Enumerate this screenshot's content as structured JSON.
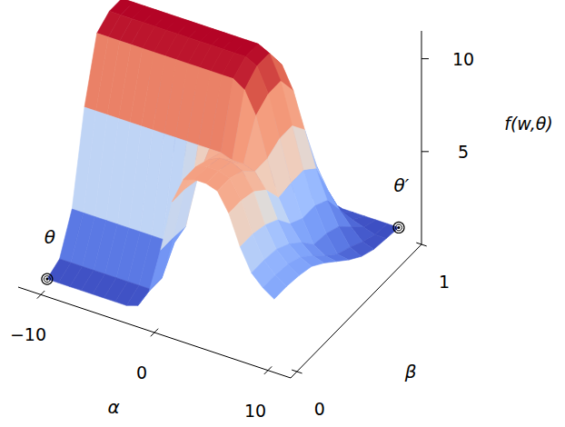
{
  "chart_data": {
    "type": "surface",
    "x_label": "α",
    "y_label": "β",
    "z_label": "f(w,θ)",
    "x": [
      -10,
      -9,
      -8,
      -7,
      -6,
      -5,
      -4,
      -3,
      -2,
      -1,
      0,
      1,
      2,
      3,
      4,
      5,
      6,
      7,
      8,
      9,
      10
    ],
    "y": [
      0,
      0.1,
      0.2,
      0.3,
      0.4,
      0.5,
      0.6,
      0.7,
      0.8,
      0.9,
      1
    ],
    "z": [
      [
        0.5,
        0.5,
        0.5,
        0.5,
        0.5,
        0.5,
        0.5,
        0.5,
        0.7,
        1.7,
        4.1,
        6.9,
        8.3,
        8.5,
        8.5,
        8.3,
        7.3,
        5.7,
        4.5,
        3.9,
        3.5
      ],
      [
        0.9,
        0.9,
        0.9,
        0.9,
        0.9,
        0.9,
        0.9,
        0.9,
        0.9,
        1.7,
        4.1,
        6.9,
        8.3,
        8.5,
        8.5,
        8.3,
        7.3,
        5.7,
        4.5,
        3.9,
        3.5
      ],
      [
        2.9,
        2.9,
        2.9,
        2.9,
        2.9,
        2.9,
        2.9,
        2.9,
        2.9,
        2.9,
        4.0,
        6.7,
        8.0,
        8.3,
        8.3,
        8.0,
        7.1,
        5.5,
        4.4,
        3.8,
        3.4
      ],
      [
        7.7,
        7.7,
        7.7,
        7.7,
        7.7,
        7.7,
        7.7,
        7.7,
        7.7,
        7.7,
        7.7,
        7.7,
        7.7,
        7.5,
        7.5,
        7.3,
        6.5,
        5.1,
        4.0,
        3.5,
        3.2
      ],
      [
        11.0,
        11.0,
        11.0,
        11.0,
        11.0,
        11.0,
        11.0,
        11.0,
        11.0,
        11.0,
        11.0,
        11.0,
        11.0,
        10.6,
        9.4,
        7.3,
        5.4,
        4.2,
        3.4,
        2.9,
        2.7
      ],
      [
        11.5,
        11.5,
        11.5,
        11.5,
        11.5,
        11.5,
        11.5,
        11.5,
        11.5,
        11.5,
        11.5,
        11.5,
        11.5,
        11.2,
        9.9,
        7.7,
        5.5,
        3.8,
        2.6,
        2.2,
        2.1
      ],
      [
        11.5,
        11.5,
        11.5,
        11.5,
        11.5,
        11.5,
        11.5,
        11.5,
        11.5,
        11.5,
        11.5,
        11.5,
        11.5,
        11.2,
        9.9,
        7.7,
        5.5,
        3.8,
        2.5,
        1.6,
        1.5
      ],
      [
        10.2,
        10.2,
        10.2,
        10.2,
        10.2,
        10.2,
        10.2,
        10.2,
        10.2,
        10.2,
        10.2,
        10.2,
        10.2,
        9.9,
        8.7,
        6.8,
        4.9,
        3.4,
        2.2,
        1.3,
        1.0
      ],
      [
        6.0,
        6.0,
        6.0,
        6.0,
        6.0,
        6.0,
        6.0,
        6.0,
        6.0,
        6.0,
        6.0,
        6.0,
        6.0,
        5.8,
        5.2,
        4.1,
        3.0,
        2.2,
        1.5,
        0.9,
        0.7
      ],
      [
        2.2,
        2.2,
        2.2,
        2.2,
        2.2,
        2.2,
        2.2,
        2.2,
        2.2,
        2.2,
        2.2,
        2.2,
        2.2,
        2.1,
        1.9,
        1.6,
        1.2,
        1.0,
        0.8,
        0.6,
        0.6
      ],
      [
        0.5,
        0.5,
        0.5,
        0.5,
        0.5,
        0.5,
        0.5,
        0.5,
        0.5,
        0.5,
        0.5,
        0.5,
        0.5,
        0.5,
        0.5,
        0.5,
        0.5,
        0.5,
        0.5,
        0.5,
        0.5
      ]
    ],
    "xlim": [
      -12,
      12
    ],
    "ylim": [
      -0.05,
      1
    ],
    "zlim": [
      0,
      11.5
    ],
    "xticks": [
      {
        "value": -10,
        "label": "−10"
      },
      0,
      10
    ],
    "yticks": [
      0,
      1
    ],
    "zticks": [
      5,
      10
    ],
    "points": [
      {
        "label": "θ",
        "alpha": -10,
        "beta": 0,
        "f": 0.5
      },
      {
        "label": "θ′",
        "alpha": 10,
        "beta": 1,
        "f": 0.5
      }
    ]
  }
}
